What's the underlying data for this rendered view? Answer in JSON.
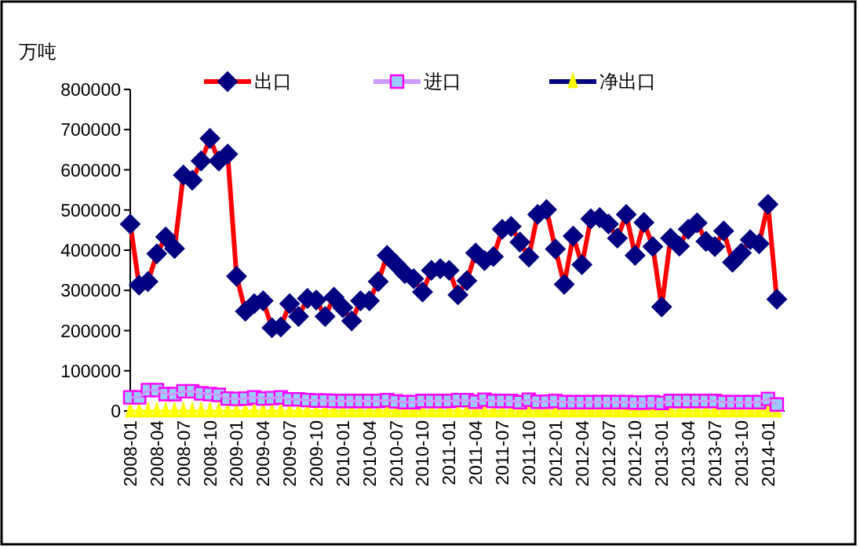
{
  "chart_data": {
    "type": "line",
    "ylabel": "万吨",
    "categories": [
      "2008-01",
      null,
      null,
      "2008-04",
      null,
      null,
      "2008-07",
      null,
      null,
      "2008-10",
      null,
      null,
      "2009-01",
      null,
      null,
      "2009-04",
      null,
      null,
      "2009-07",
      null,
      null,
      "2009-10",
      null,
      null,
      "2010-01",
      null,
      null,
      "2010-04",
      null,
      null,
      "2010-07",
      null,
      null,
      "2010-10",
      null,
      null,
      "2011-01",
      null,
      null,
      "2011-04",
      null,
      null,
      "2011-07",
      null,
      null,
      "2011-10",
      null,
      null,
      "2012-01",
      null,
      null,
      "2012-04",
      null,
      null,
      "2012-07",
      null,
      null,
      "2012-10",
      null,
      null,
      "2013-01",
      null,
      null,
      "2013-04",
      null,
      null,
      "2013-07",
      null,
      null,
      "2013-10",
      null,
      null,
      "2014-01",
      null
    ],
    "series": [
      {
        "name": "出口",
        "color": "#ff0000",
        "marker": "diamond",
        "values": [
          465000,
          313000,
          322000,
          391000,
          433000,
          404000,
          587000,
          574000,
          622000,
          678000,
          622000,
          639000,
          335000,
          248000,
          267000,
          274000,
          207000,
          209000,
          267000,
          235000,
          280000,
          276000,
          235000,
          283000,
          257000,
          224000,
          274000,
          274000,
          322000,
          387000,
          365000,
          342000,
          329000,
          296000,
          350000,
          354000,
          350000,
          289000,
          324000,
          393000,
          374000,
          384000,
          452000,
          459000,
          420000,
          383000,
          489000,
          501000,
          403000,
          315000,
          435000,
          364000,
          478000,
          481000,
          465000,
          430000,
          489000,
          387000,
          469000,
          409000,
          259000,
          430000,
          410000,
          452000,
          468000,
          422000,
          409000,
          448000,
          370000,
          393000,
          426000,
          416000,
          514000,
          278000
        ]
      },
      {
        "name": "进口",
        "color": "#cc99ff",
        "marker": "square",
        "values": [
          34000,
          34000,
          52000,
          52000,
          42000,
          42000,
          49000,
          49000,
          44000,
          42000,
          40000,
          31000,
          30000,
          31000,
          34000,
          31000,
          32000,
          34000,
          29000,
          29000,
          27000,
          26000,
          26000,
          25000,
          25000,
          25000,
          25000,
          25000,
          25000,
          27000,
          24000,
          22000,
          22000,
          25000,
          25000,
          25000,
          25000,
          27000,
          27000,
          23000,
          28000,
          25000,
          25000,
          25000,
          22000,
          28000,
          23000,
          23000,
          25000,
          22000,
          22000,
          22000,
          22000,
          22000,
          22000,
          22000,
          22000,
          21000,
          21000,
          22000,
          20000,
          25000,
          25000,
          25000,
          25000,
          25000,
          25000,
          22000,
          22000,
          22000,
          22000,
          22000,
          30000,
          16000
        ]
      },
      {
        "name": "净出口",
        "color": "#ffff00",
        "marker": "triangle",
        "values": [
          0,
          0,
          0,
          0,
          0,
          0,
          0,
          0,
          0,
          0,
          0,
          0,
          0,
          0,
          0,
          0,
          0,
          0,
          0,
          0,
          0,
          0,
          0,
          0,
          0,
          0,
          0,
          0,
          0,
          0,
          0,
          0,
          0,
          0,
          0,
          0,
          0,
          0,
          0,
          0,
          0,
          0,
          0,
          0,
          0,
          0,
          0,
          0,
          0,
          0,
          0,
          0,
          0,
          0,
          0,
          0,
          0,
          0,
          0,
          0,
          0,
          0,
          0,
          0,
          0,
          0,
          0,
          0,
          0,
          0,
          0,
          0,
          0,
          0
        ]
      }
    ],
    "ylim": [
      0,
      800000
    ],
    "yticks": [
      0,
      100000,
      200000,
      300000,
      400000,
      500000,
      600000,
      700000,
      800000
    ],
    "grid": false,
    "legend": "top"
  }
}
